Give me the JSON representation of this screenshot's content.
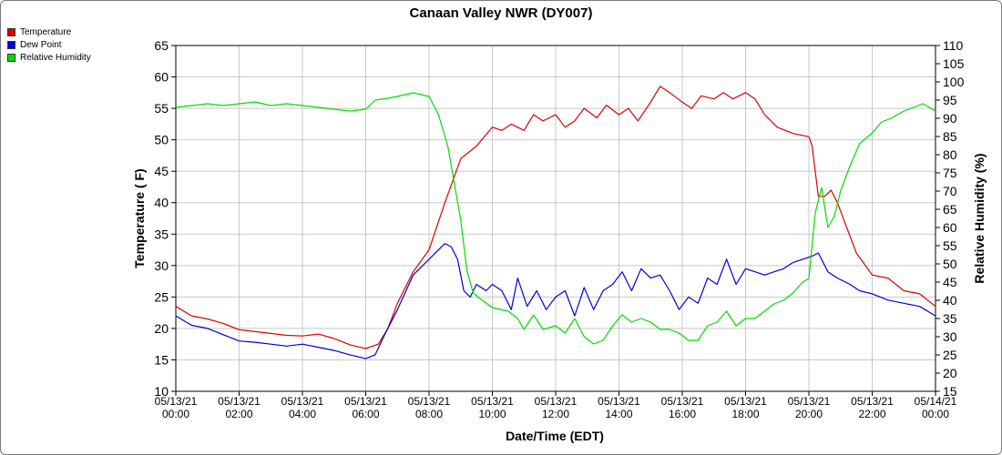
{
  "chart_data": {
    "type": "line",
    "title": "Canaan Valley NWR (DY007)",
    "xlabel": "Date/Time (EDT)",
    "ylabel": "Temperature ( F)",
    "y2label": "Relative Humidity (%)",
    "ylim": [
      10,
      65
    ],
    "y2lim": [
      15,
      110
    ],
    "yticks": [
      "10",
      "15",
      "20",
      "25",
      "30",
      "35",
      "40",
      "45",
      "50",
      "55",
      "60",
      "65"
    ],
    "y2ticks": [
      "15",
      "20",
      "25",
      "30",
      "35",
      "40",
      "45",
      "50",
      "55",
      "60",
      "65",
      "70",
      "75",
      "80",
      "85",
      "90",
      "95",
      "100",
      "105",
      "110"
    ],
    "xlim_hours": [
      0,
      24
    ],
    "x_tick_dates": [
      "05/13/21",
      "05/13/21",
      "05/13/21",
      "05/13/21",
      "05/13/21",
      "05/13/21",
      "05/13/21",
      "05/13/21",
      "05/13/21",
      "05/13/21",
      "05/13/21",
      "05/13/21",
      "05/14/21"
    ],
    "x_tick_times": [
      "00:00",
      "02:00",
      "04:00",
      "06:00",
      "08:00",
      "10:00",
      "12:00",
      "14:00",
      "16:00",
      "18:00",
      "20:00",
      "22:00",
      "00:00"
    ],
    "grid": true,
    "legend_position": "top-left",
    "series": [
      {
        "name": "Temperature",
        "axis": "left",
        "color": "#dd0000",
        "points": [
          [
            0,
            23.5
          ],
          [
            0.5,
            22
          ],
          [
            1,
            21.5
          ],
          [
            1.5,
            20.8
          ],
          [
            2,
            19.8
          ],
          [
            2.5,
            19.5
          ],
          [
            3,
            19.2
          ],
          [
            3.5,
            18.9
          ],
          [
            4,
            18.8
          ],
          [
            4.5,
            19.1
          ],
          [
            5,
            18.4
          ],
          [
            5.5,
            17.4
          ],
          [
            6,
            16.8
          ],
          [
            6.4,
            17.5
          ],
          [
            6.7,
            20
          ],
          [
            7,
            24
          ],
          [
            7.5,
            29
          ],
          [
            8,
            32.5
          ],
          [
            8.5,
            40
          ],
          [
            9,
            47
          ],
          [
            9.5,
            49
          ],
          [
            10,
            52
          ],
          [
            10.3,
            51.5
          ],
          [
            10.6,
            52.5
          ],
          [
            11,
            51.5
          ],
          [
            11.3,
            54
          ],
          [
            11.6,
            53
          ],
          [
            12,
            54
          ],
          [
            12.3,
            52
          ],
          [
            12.6,
            53
          ],
          [
            12.9,
            55
          ],
          [
            13.3,
            53.5
          ],
          [
            13.6,
            55.5
          ],
          [
            14,
            54
          ],
          [
            14.3,
            55
          ],
          [
            14.6,
            53
          ],
          [
            15,
            56
          ],
          [
            15.3,
            58.5
          ],
          [
            15.6,
            57.5
          ],
          [
            16,
            56
          ],
          [
            16.3,
            55
          ],
          [
            16.6,
            57
          ],
          [
            17,
            56.5
          ],
          [
            17.3,
            57.5
          ],
          [
            17.6,
            56.5
          ],
          [
            18,
            57.5
          ],
          [
            18.3,
            56.5
          ],
          [
            18.6,
            54
          ],
          [
            19,
            52
          ],
          [
            19.5,
            51
          ],
          [
            20,
            50.5
          ],
          [
            20.1,
            49
          ],
          [
            20.3,
            41
          ],
          [
            20.5,
            41
          ],
          [
            20.7,
            42
          ],
          [
            20.9,
            40
          ],
          [
            21.2,
            36
          ],
          [
            21.5,
            32
          ],
          [
            22,
            28.5
          ],
          [
            22.5,
            28
          ],
          [
            23,
            26
          ],
          [
            23.5,
            25.5
          ],
          [
            24,
            23.5
          ]
        ]
      },
      {
        "name": "Dew Point",
        "axis": "left",
        "color": "#0000dd",
        "points": [
          [
            0,
            22
          ],
          [
            0.5,
            20.5
          ],
          [
            1,
            20
          ],
          [
            1.5,
            19
          ],
          [
            2,
            18
          ],
          [
            2.5,
            17.8
          ],
          [
            3,
            17.5
          ],
          [
            3.5,
            17.2
          ],
          [
            4,
            17.5
          ],
          [
            4.5,
            17
          ],
          [
            5,
            16.5
          ],
          [
            5.5,
            15.8
          ],
          [
            6,
            15.2
          ],
          [
            6.3,
            15.8
          ],
          [
            6.6,
            19
          ],
          [
            7,
            23
          ],
          [
            7.5,
            28.5
          ],
          [
            8,
            31
          ],
          [
            8.5,
            33.5
          ],
          [
            8.7,
            33
          ],
          [
            8.9,
            31
          ],
          [
            9.1,
            26
          ],
          [
            9.3,
            25
          ],
          [
            9.5,
            27
          ],
          [
            9.8,
            26
          ],
          [
            10,
            27
          ],
          [
            10.3,
            26
          ],
          [
            10.6,
            23
          ],
          [
            10.8,
            28
          ],
          [
            11.1,
            23.5
          ],
          [
            11.4,
            26
          ],
          [
            11.7,
            23
          ],
          [
            12,
            25
          ],
          [
            12.3,
            26
          ],
          [
            12.6,
            22
          ],
          [
            12.9,
            26.5
          ],
          [
            13.2,
            23
          ],
          [
            13.5,
            26
          ],
          [
            13.8,
            27
          ],
          [
            14.1,
            29
          ],
          [
            14.4,
            26
          ],
          [
            14.7,
            29.5
          ],
          [
            15,
            28
          ],
          [
            15.3,
            28.5
          ],
          [
            15.6,
            26
          ],
          [
            15.9,
            23
          ],
          [
            16.2,
            25
          ],
          [
            16.5,
            24
          ],
          [
            16.8,
            28
          ],
          [
            17.1,
            27
          ],
          [
            17.4,
            31
          ],
          [
            17.7,
            27
          ],
          [
            18,
            29.5
          ],
          [
            18.3,
            29
          ],
          [
            18.6,
            28.5
          ],
          [
            18.9,
            29
          ],
          [
            19.2,
            29.5
          ],
          [
            19.5,
            30.5
          ],
          [
            19.8,
            31
          ],
          [
            20.1,
            31.5
          ],
          [
            20.3,
            32
          ],
          [
            20.6,
            29
          ],
          [
            20.9,
            28
          ],
          [
            21.3,
            27
          ],
          [
            21.6,
            26
          ],
          [
            22,
            25.5
          ],
          [
            22.5,
            24.5
          ],
          [
            23,
            24
          ],
          [
            23.5,
            23.5
          ],
          [
            24,
            22
          ]
        ]
      },
      {
        "name": "Relative Humidity",
        "axis": "right",
        "color": "#00dd00",
        "points": [
          [
            0,
            93
          ],
          [
            0.5,
            93.5
          ],
          [
            1,
            94
          ],
          [
            1.5,
            93.5
          ],
          [
            2,
            94
          ],
          [
            2.5,
            94.5
          ],
          [
            3,
            93.5
          ],
          [
            3.5,
            94
          ],
          [
            4,
            93.5
          ],
          [
            4.5,
            93
          ],
          [
            5,
            92.5
          ],
          [
            5.5,
            92
          ],
          [
            6,
            92.5
          ],
          [
            6.3,
            95
          ],
          [
            6.7,
            95.5
          ],
          [
            7,
            96
          ],
          [
            7.5,
            97
          ],
          [
            8,
            96
          ],
          [
            8.3,
            91
          ],
          [
            8.6,
            82
          ],
          [
            9,
            62
          ],
          [
            9.2,
            48
          ],
          [
            9.4,
            42
          ],
          [
            9.6,
            40.5
          ],
          [
            10,
            38
          ],
          [
            10.5,
            37
          ],
          [
            10.8,
            35
          ],
          [
            11,
            32
          ],
          [
            11.3,
            36
          ],
          [
            11.6,
            32
          ],
          [
            12,
            33
          ],
          [
            12.3,
            31
          ],
          [
            12.6,
            35
          ],
          [
            12.9,
            30
          ],
          [
            13.2,
            28
          ],
          [
            13.5,
            29
          ],
          [
            13.8,
            33
          ],
          [
            14.1,
            36
          ],
          [
            14.4,
            34
          ],
          [
            14.7,
            35
          ],
          [
            15,
            34
          ],
          [
            15.3,
            32
          ],
          [
            15.6,
            32
          ],
          [
            15.9,
            31
          ],
          [
            16.2,
            29
          ],
          [
            16.5,
            29
          ],
          [
            16.8,
            33
          ],
          [
            17.1,
            34
          ],
          [
            17.4,
            37
          ],
          [
            17.7,
            33
          ],
          [
            18,
            35
          ],
          [
            18.3,
            35
          ],
          [
            18.6,
            37
          ],
          [
            18.9,
            39
          ],
          [
            19.2,
            40
          ],
          [
            19.5,
            42
          ],
          [
            19.8,
            45
          ],
          [
            20,
            46
          ],
          [
            20.2,
            64
          ],
          [
            20.4,
            71
          ],
          [
            20.6,
            60
          ],
          [
            20.8,
            63
          ],
          [
            21,
            70
          ],
          [
            21.3,
            77
          ],
          [
            21.6,
            83
          ],
          [
            22,
            86
          ],
          [
            22.3,
            89
          ],
          [
            22.6,
            90
          ],
          [
            23,
            92
          ],
          [
            23.3,
            93
          ],
          [
            23.6,
            94
          ],
          [
            24,
            92
          ]
        ]
      }
    ]
  }
}
